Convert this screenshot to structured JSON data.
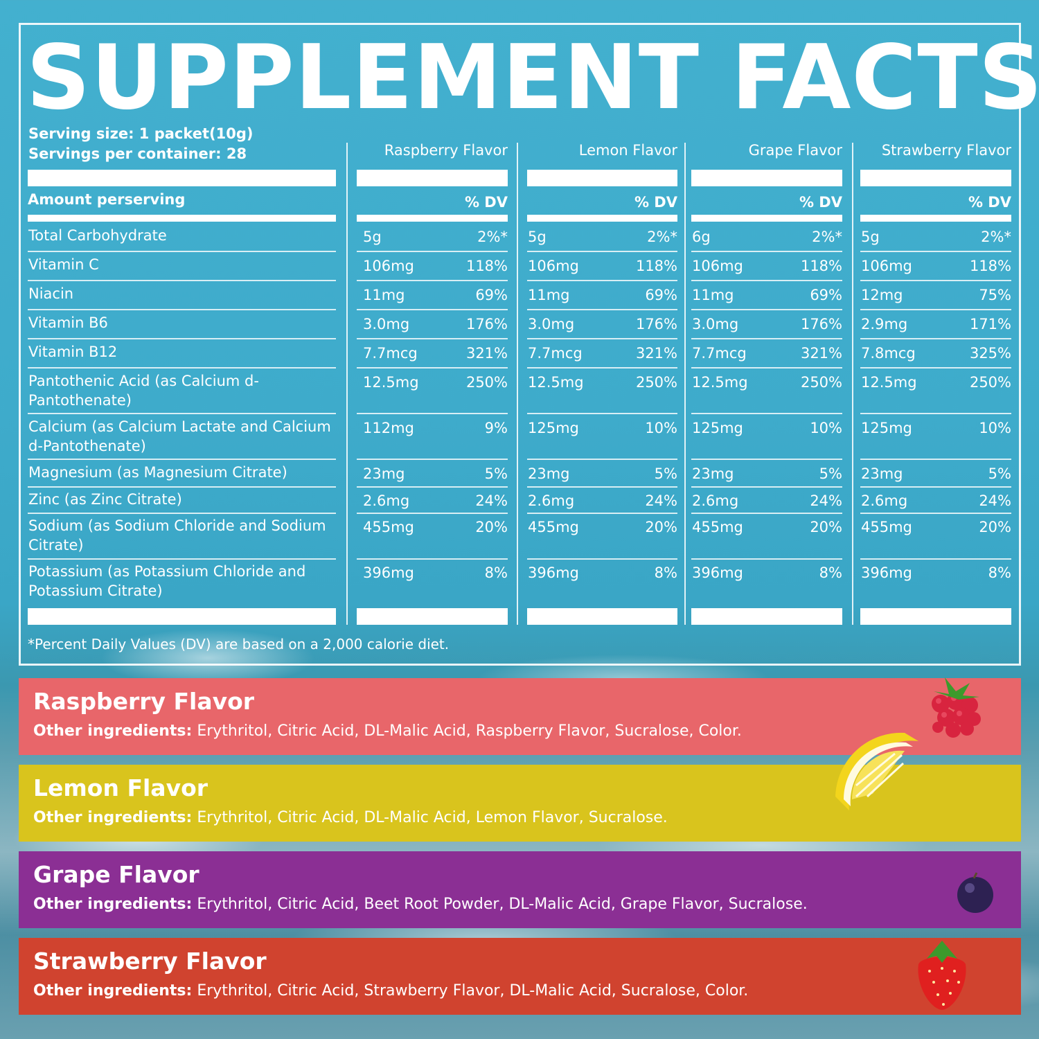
{
  "title": "SUPPLEMENT FACTS",
  "serving_size": "Serving size: 1 packet(10g)",
  "servings_per_container": "Servings per container: 28",
  "amount_per_serving": "Amount perserving",
  "dv_label": "% DV",
  "flavors": [
    "Raspberry Flavor",
    "Lemon Flavor",
    "Grape Flavor",
    "Strawberry Flavor"
  ],
  "nutrients": [
    {
      "name": "Total Carbohydrate",
      "values": [
        [
          "5g",
          "2%*"
        ],
        [
          "5g",
          "2%*"
        ],
        [
          "6g",
          "2%*"
        ],
        [
          "5g",
          "2%*"
        ]
      ]
    },
    {
      "name": "Vitamin  C",
      "values": [
        [
          "106mg",
          "118%"
        ],
        [
          "106mg",
          "118%"
        ],
        [
          "106mg",
          "118%"
        ],
        [
          "106mg",
          "118%"
        ]
      ]
    },
    {
      "name": "Niacin",
      "values": [
        [
          "11mg",
          "69%"
        ],
        [
          "11mg",
          "69%"
        ],
        [
          "11mg",
          "69%"
        ],
        [
          "12mg",
          "75%"
        ]
      ]
    },
    {
      "name": "Vitamin B6",
      "values": [
        [
          "3.0mg",
          "176%"
        ],
        [
          "3.0mg",
          "176%"
        ],
        [
          "3.0mg",
          "176%"
        ],
        [
          "2.9mg",
          "171%"
        ]
      ]
    },
    {
      "name": "Vitamin B12",
      "values": [
        [
          "7.7mcg",
          "321%"
        ],
        [
          "7.7mcg",
          "321%"
        ],
        [
          "7.7mcg",
          "321%"
        ],
        [
          "7.8mcg",
          "325%"
        ]
      ]
    },
    {
      "name": "Pantothenic Acid (as Calcium d-Pantothenate)",
      "values": [
        [
          "12.5mg",
          "250%"
        ],
        [
          "12.5mg",
          "250%"
        ],
        [
          "12.5mg",
          "250%"
        ],
        [
          "12.5mg",
          "250%"
        ]
      ]
    },
    {
      "name": "Calcium (as Calcium Lactate and Calcium d-Pantothenate)",
      "values": [
        [
          "112mg",
          "9%"
        ],
        [
          "125mg",
          "10%"
        ],
        [
          "125mg",
          "10%"
        ],
        [
          "125mg",
          "10%"
        ]
      ]
    },
    {
      "name": "Magnesium (as Magnesium Citrate)",
      "values": [
        [
          "23mg",
          "5%"
        ],
        [
          "23mg",
          "5%"
        ],
        [
          "23mg",
          "5%"
        ],
        [
          "23mg",
          "5%"
        ]
      ]
    },
    {
      "name": "Zinc (as Zinc Citrate)",
      "values": [
        [
          "2.6mg",
          "24%"
        ],
        [
          "2.6mg",
          "24%"
        ],
        [
          "2.6mg",
          "24%"
        ],
        [
          "2.6mg",
          "24%"
        ]
      ]
    },
    {
      "name": "Sodium (as Sodium Chloride and Sodium Citrate)",
      "values": [
        [
          "455mg",
          "20%"
        ],
        [
          "455mg",
          "20%"
        ],
        [
          "455mg",
          "20%"
        ],
        [
          "455mg",
          "20%"
        ]
      ]
    },
    {
      "name": "Potassium (as Potassium Chloride and Potassium Citrate)",
      "values": [
        [
          "396mg",
          "8%"
        ],
        [
          "396mg",
          "8%"
        ],
        [
          "396mg",
          "8%"
        ],
        [
          "396mg",
          "8%"
        ]
      ]
    }
  ],
  "footnote": "*Percent Daily Values (DV) are based on a 2,000 calorie diet.",
  "other_label": "Other ingredients:",
  "panels": [
    {
      "title": "Raspberry Flavor",
      "ingredients": " Erythritol, Citric Acid, DL-Malic Acid, Raspberry Flavor, Sucralose, Color.",
      "color": "#e8666a",
      "icon": "raspberry-icon"
    },
    {
      "title": "Lemon Flavor",
      "ingredients": " Erythritol, Citric Acid, DL-Malic Acid, Lemon Flavor, Sucralose.",
      "color": "#d9c41d",
      "icon": "lemon-icon"
    },
    {
      "title": "Grape Flavor",
      "ingredients": " Erythritol, Citric Acid, Beet Root Powder, DL-Malic Acid, Grape Flavor, Sucralose.",
      "color": "#8b2f94",
      "icon": "grape-icon"
    },
    {
      "title": "Strawberry Flavor",
      "ingredients": " Erythritol, Citric Acid, Strawberry Flavor, DL-Malic Acid, Sucralose, Color.",
      "color": "#d0432f",
      "icon": "strawberry-icon"
    }
  ]
}
